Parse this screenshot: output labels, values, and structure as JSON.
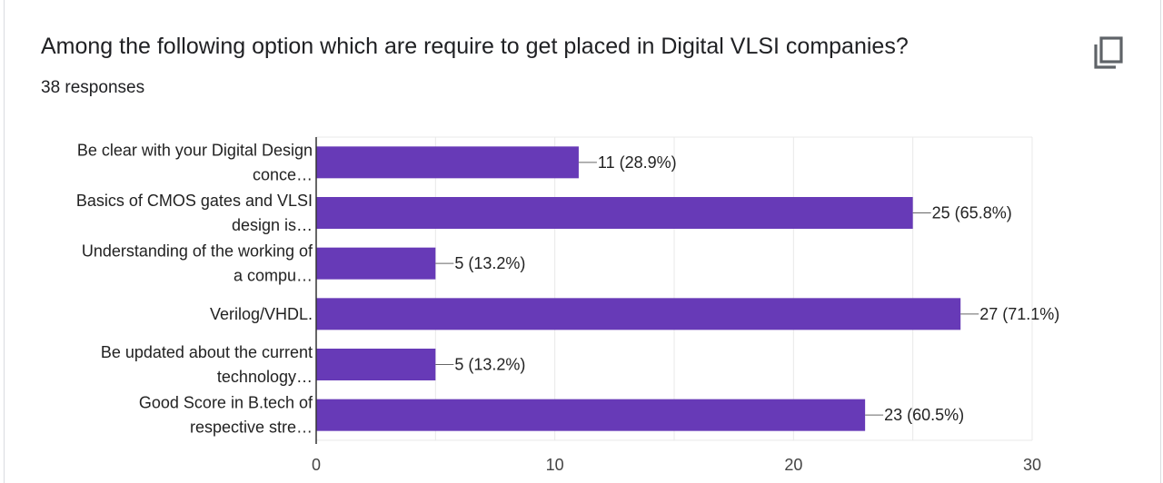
{
  "card": {
    "question": "Among the following option which are require to get placed in Digital VLSI companies?",
    "responses": "38 responses",
    "copy_icon": "copy-icon"
  },
  "colors": {
    "bar": "#673ab7",
    "grid": "#e8e8e8",
    "axis": "#333333"
  },
  "chart_data": {
    "type": "bar",
    "orientation": "horizontal",
    "categories": [
      [
        "Be clear with your Digital Design",
        "conce…"
      ],
      [
        "Basics of CMOS gates and VLSI",
        "design is…"
      ],
      [
        "Understanding of the working of",
        "a compu…"
      ],
      [
        "Verilog/VHDL."
      ],
      [
        "Be updated about the current",
        "technology…"
      ],
      [
        "Good Score in B.tech of",
        "respective stre…"
      ]
    ],
    "values": [
      11,
      25,
      5,
      27,
      5,
      23
    ],
    "value_labels": [
      "11 (28.9%)",
      "25 (65.8%)",
      "5 (13.2%)",
      "27 (71.1%)",
      "5 (13.2%)",
      "23 (60.5%)"
    ],
    "xlim": [
      0,
      30
    ],
    "xticks": [
      0,
      10,
      20,
      30
    ],
    "grid": true,
    "legend": "none"
  }
}
